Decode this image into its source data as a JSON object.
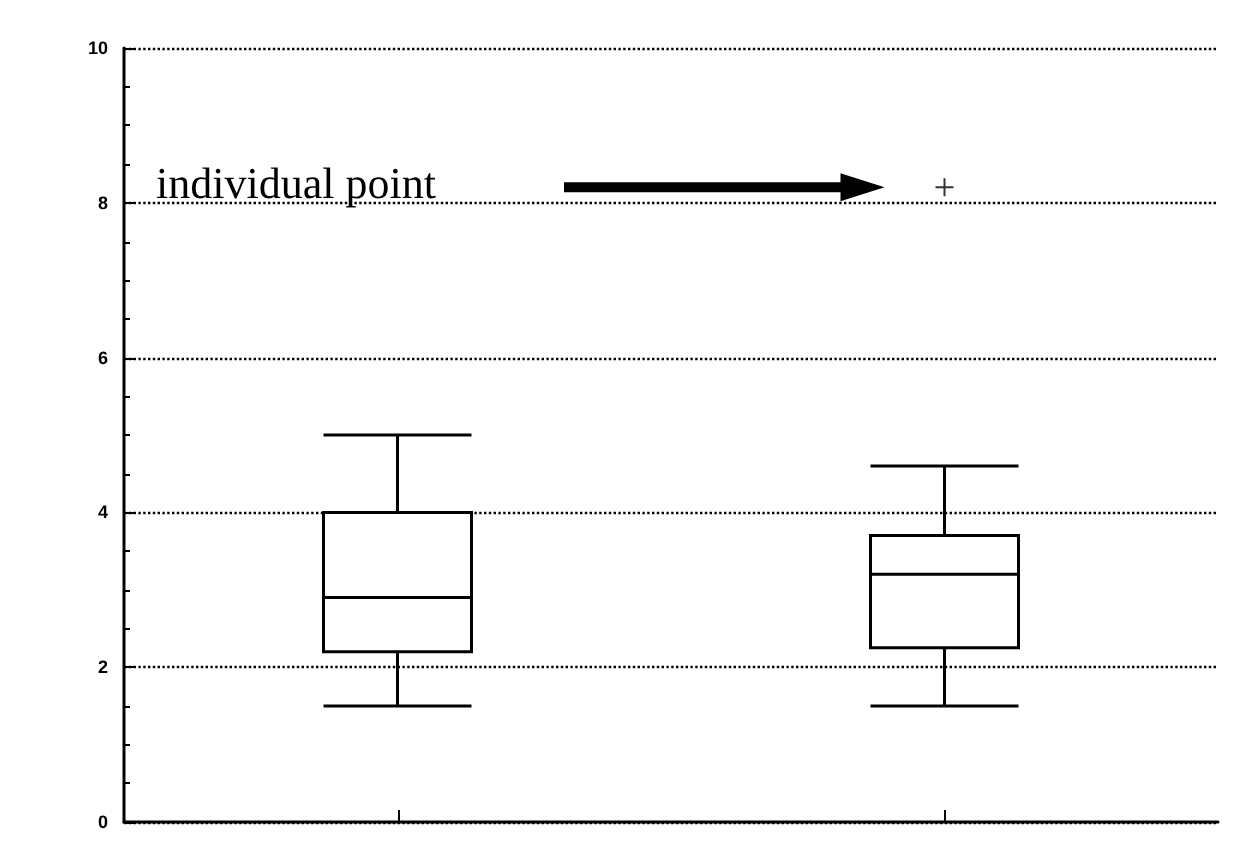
{
  "chart_data": {
    "type": "box",
    "categories": [
      null,
      null
    ],
    "boxes": [
      {
        "low": 1.5,
        "q1": 2.2,
        "median": 2.9,
        "q3": 4.0,
        "high": 5.0
      },
      {
        "low": 1.5,
        "q1": 2.25,
        "median": 3.2,
        "q3": 3.7,
        "high": 4.6,
        "outliers": [
          8.2
        ]
      }
    ],
    "ylim": [
      0,
      10
    ],
    "yticks": [
      0,
      2,
      4,
      6,
      8,
      10
    ],
    "grid": "y",
    "annotations": [
      "individual point"
    ]
  }
}
